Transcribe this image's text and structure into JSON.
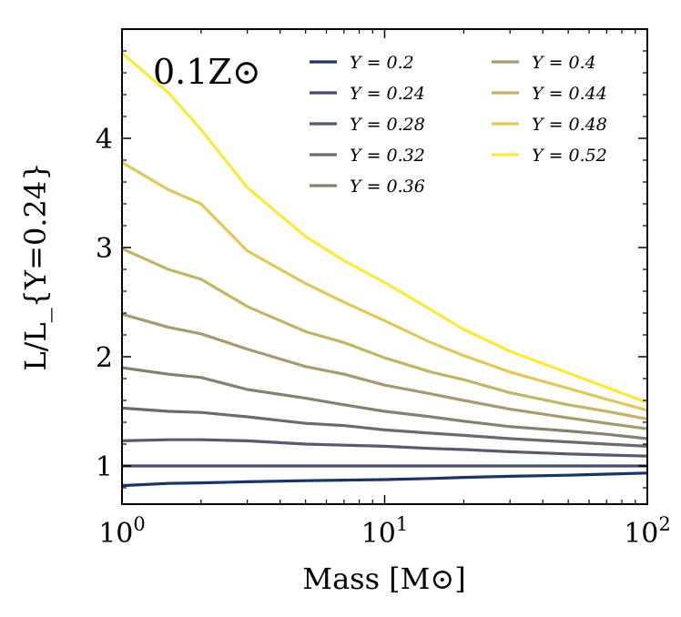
{
  "chart_data": {
    "type": "line",
    "title": "",
    "annotation": "0.1Z⊙",
    "xlabel": "Mass [M⊙]",
    "ylabel": "L/L_{Y=0.24}",
    "xscale": "log",
    "xlim": [
      1,
      100
    ],
    "ylim": [
      0.65,
      5.0
    ],
    "xticks": [
      {
        "value": 1,
        "base": "10",
        "exp": "0"
      },
      {
        "value": 10,
        "base": "10",
        "exp": "1"
      },
      {
        "value": 100,
        "base": "10",
        "exp": "2"
      }
    ],
    "yticks": [
      {
        "value": 1,
        "label": "1"
      },
      {
        "value": 2,
        "label": "2"
      },
      {
        "value": 3,
        "label": "3"
      },
      {
        "value": 4,
        "label": "4"
      }
    ],
    "legend_position": "top-right",
    "x": [
      1,
      1.5,
      2,
      3,
      5,
      7,
      10,
      15,
      20,
      30,
      50,
      70,
      100
    ],
    "series": [
      {
        "name": "Y = 0.2",
        "color": "#1b3467",
        "values": [
          0.82,
          0.84,
          0.845,
          0.855,
          0.865,
          0.87,
          0.875,
          0.885,
          0.895,
          0.905,
          0.915,
          0.925,
          0.935
        ]
      },
      {
        "name": "Y = 0.24",
        "color": "#434d6b",
        "values": [
          1.0,
          1.0,
          1.0,
          1.0,
          1.0,
          1.0,
          1.0,
          1.0,
          1.0,
          1.0,
          1.0,
          1.0,
          1.0
        ]
      },
      {
        "name": "Y = 0.28",
        "color": "#575b6d",
        "values": [
          1.23,
          1.24,
          1.24,
          1.23,
          1.2,
          1.19,
          1.18,
          1.16,
          1.15,
          1.13,
          1.11,
          1.1,
          1.09
        ]
      },
      {
        "name": "Y = 0.32",
        "color": "#6b6b6f",
        "values": [
          1.53,
          1.5,
          1.49,
          1.45,
          1.39,
          1.37,
          1.33,
          1.3,
          1.28,
          1.25,
          1.22,
          1.2,
          1.18
        ]
      },
      {
        "name": "Y = 0.36",
        "color": "#858170",
        "values": [
          1.9,
          1.84,
          1.81,
          1.7,
          1.62,
          1.56,
          1.5,
          1.45,
          1.41,
          1.36,
          1.32,
          1.29,
          1.25
        ]
      },
      {
        "name": "Y = 0.4",
        "color": "#a59b6e",
        "values": [
          2.39,
          2.27,
          2.21,
          2.07,
          1.91,
          1.84,
          1.74,
          1.66,
          1.6,
          1.52,
          1.44,
          1.39,
          1.34
        ]
      },
      {
        "name": "Y = 0.44",
        "color": "#c4b466",
        "values": [
          2.99,
          2.8,
          2.71,
          2.46,
          2.23,
          2.13,
          1.99,
          1.86,
          1.79,
          1.67,
          1.56,
          1.5,
          1.43
        ]
      },
      {
        "name": "Y = 0.48",
        "color": "#dfc95a",
        "values": [
          3.78,
          3.53,
          3.4,
          2.97,
          2.67,
          2.5,
          2.33,
          2.13,
          2.01,
          1.86,
          1.71,
          1.61,
          1.51
        ]
      },
      {
        "name": "Y = 0.52",
        "color": "#fce93c",
        "values": [
          4.78,
          4.42,
          4.08,
          3.55,
          3.1,
          2.88,
          2.68,
          2.43,
          2.25,
          2.05,
          1.85,
          1.72,
          1.58
        ]
      }
    ]
  }
}
